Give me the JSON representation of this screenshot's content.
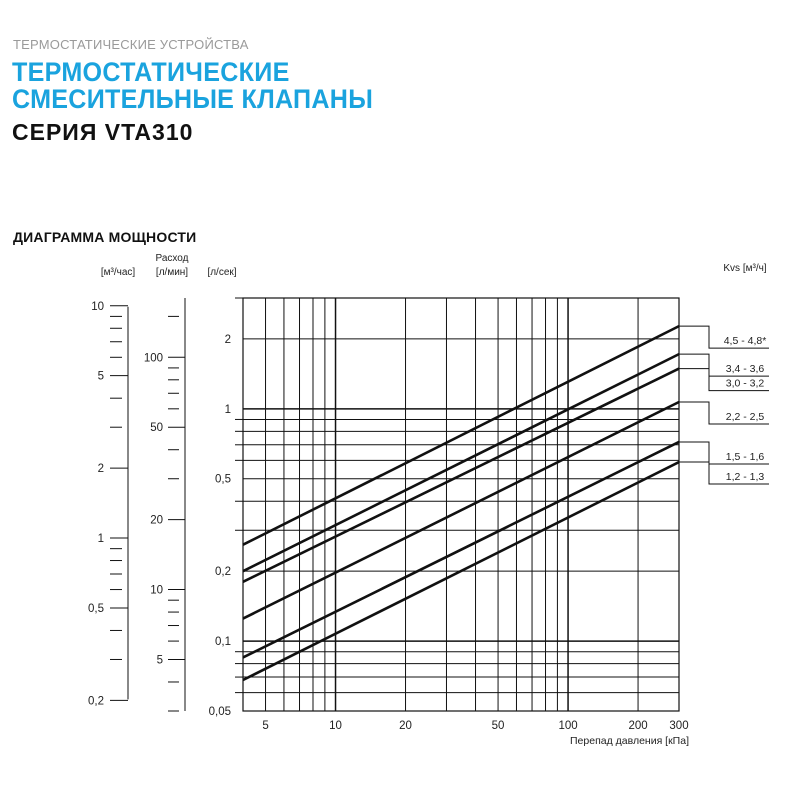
{
  "header": {
    "overline": "ТЕРМОСТАТИЧЕСКИЕ УСТРОЙСТВА",
    "title_line1": "ТЕРМОСТАТИЧЕСКИЕ",
    "title_line2": "СМЕСИТЕЛЬНЫЕ КЛАПАНЫ",
    "series": "СЕРИЯ VTA310",
    "section": "ДИАГРАММА МОЩНОСТИ"
  },
  "colors": {
    "title": "#1aa3de",
    "line": "#111111",
    "grid": "#111111"
  },
  "chart_data": {
    "type": "line",
    "x_scale": "log",
    "y_scale": "log",
    "xlim": [
      4,
      300
    ],
    "ylim": [
      0.05,
      3
    ],
    "grid": true,
    "xlabel": "Перепад давления [кПа]",
    "x_ticks": [
      5,
      10,
      20,
      50,
      100,
      200,
      300
    ],
    "y_label_main": "[л/сек]",
    "y_ticks": [
      0.05,
      0.1,
      0.2,
      0.5,
      1,
      2
    ],
    "y_ticks_labels": [
      "0,05",
      "0,1",
      "0,2",
      "0,5",
      "1",
      "2"
    ],
    "legend_title": "Kvs [м³/ч]",
    "secondary_axes": [
      {
        "label": "[м³/час]",
        "ticks": [
          0.2,
          0.5,
          1,
          2,
          5,
          10
        ],
        "tick_labels": [
          "0,2",
          "0,5",
          "1",
          "2",
          "5",
          "10"
        ]
      },
      {
        "label": "[л/мин]",
        "title": "Расход",
        "ticks": [
          5,
          10,
          20,
          50,
          100
        ],
        "tick_labels": [
          "5",
          "10",
          "20",
          "50",
          "100"
        ]
      }
    ],
    "series": [
      {
        "name": "4,5 - 4,8*",
        "x": [
          4,
          300
        ],
        "y": [
          0.26,
          2.27
        ]
      },
      {
        "name": "3,4 - 3,6",
        "x": [
          4,
          300
        ],
        "y": [
          0.2,
          1.72
        ]
      },
      {
        "name": "3,0 - 3,2",
        "x": [
          4,
          300
        ],
        "y": [
          0.18,
          1.49
        ]
      },
      {
        "name": "2,2 - 2,5",
        "x": [
          4,
          300
        ],
        "y": [
          0.125,
          1.07
        ]
      },
      {
        "name": "1,5 - 1,6",
        "x": [
          4,
          300
        ],
        "y": [
          0.085,
          0.72
        ]
      },
      {
        "name": "1,2 - 1,3",
        "x": [
          4,
          300
        ],
        "y": [
          0.068,
          0.59
        ]
      }
    ]
  }
}
